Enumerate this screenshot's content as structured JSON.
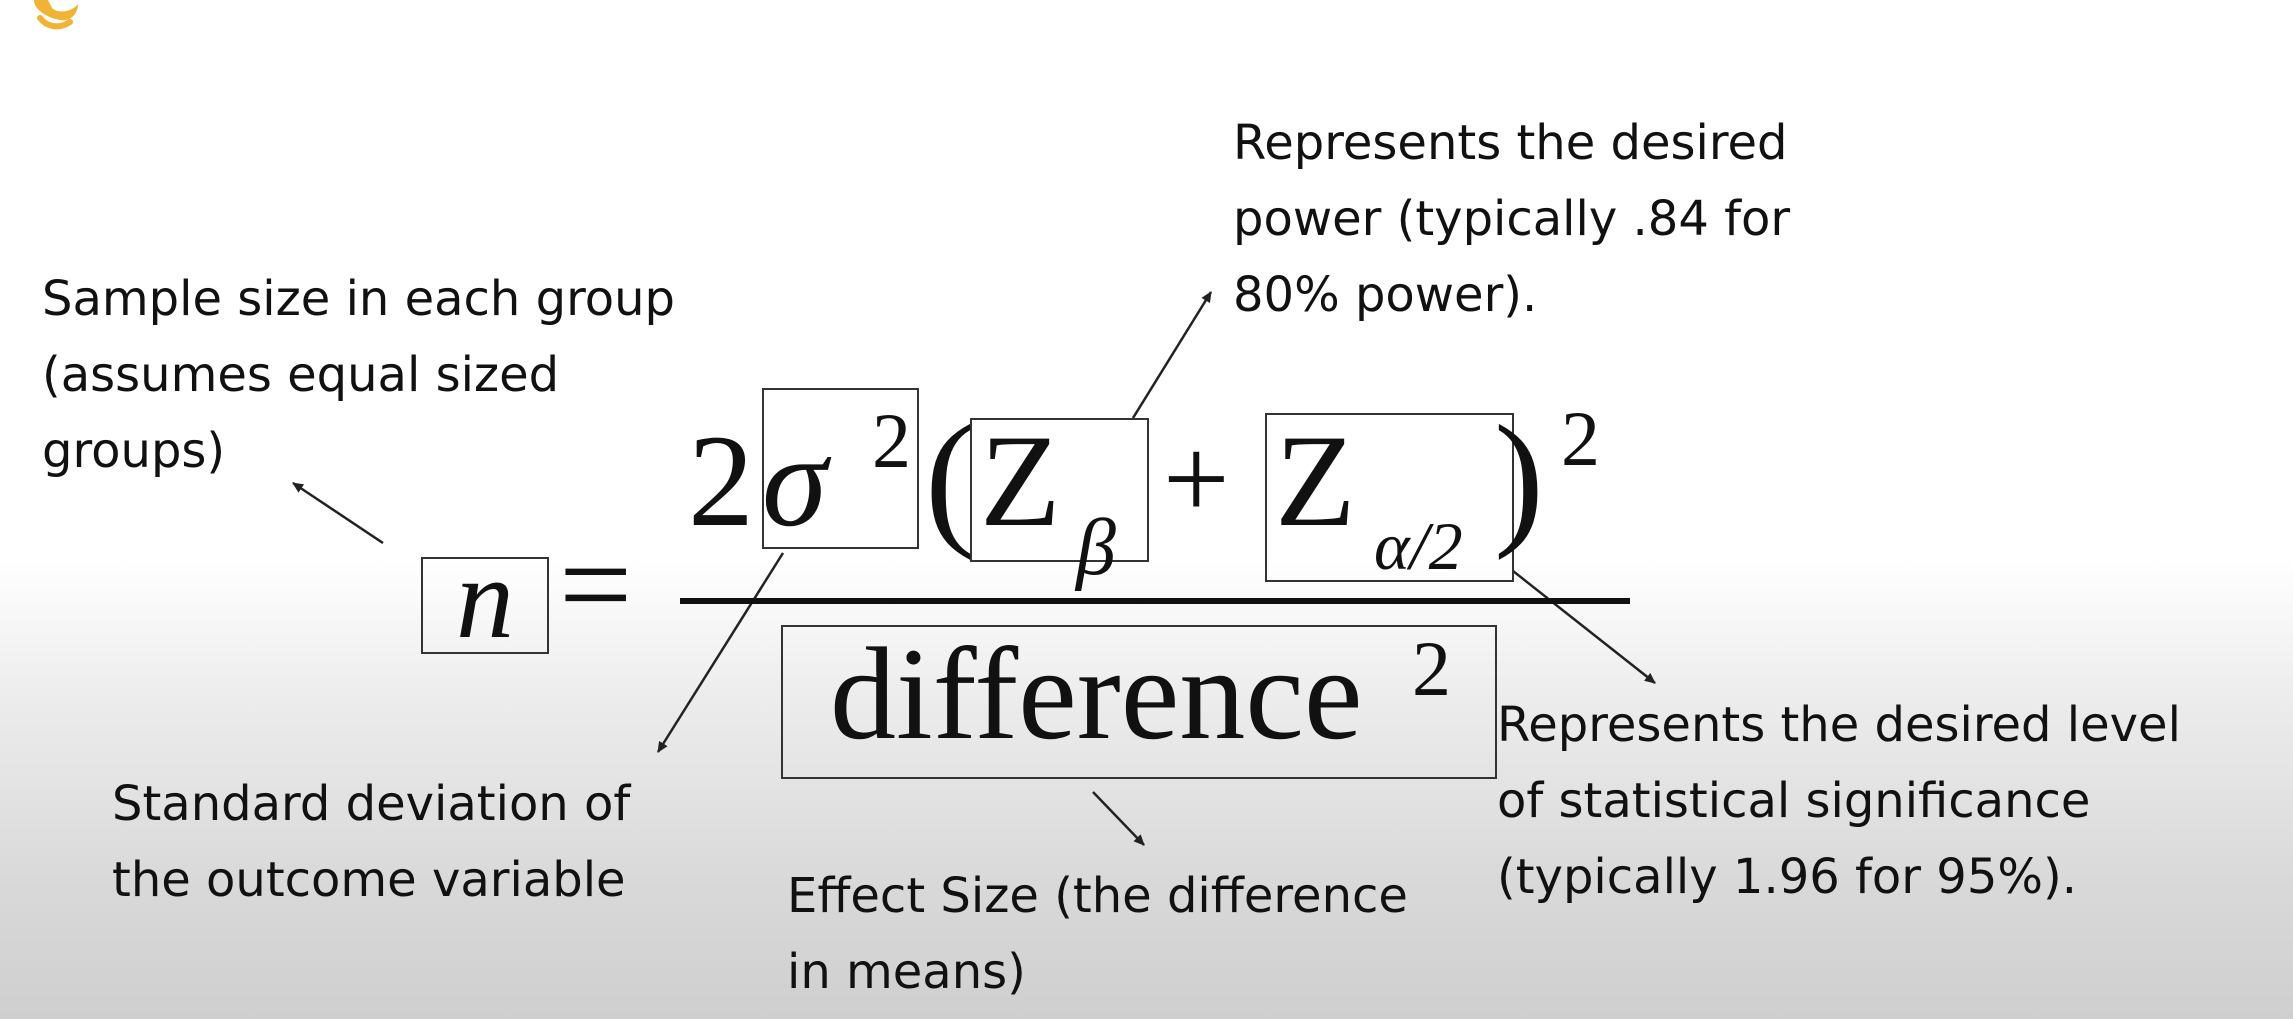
{
  "annotations": {
    "power": {
      "lines": [
        "Represents the desired",
        "power (typically .84 for",
        "80% power)."
      ]
    },
    "sample_size": {
      "lines": [
        "Sample size in each group",
        "(assumes equal sized",
        "groups)"
      ]
    },
    "std_dev": {
      "lines": [
        "Standard deviation of",
        "the outcome variable"
      ]
    },
    "effect_size": {
      "lines": [
        "Effect Size (the difference",
        "in means)"
      ]
    },
    "significance": {
      "lines": [
        "Represents the desired level",
        "of statistical significance",
        "(typically 1.96 for 95%)."
      ]
    }
  },
  "formula": {
    "lhs": "n",
    "equals": "=",
    "coefficient": "2",
    "sigma": "σ",
    "sigma_exponent": "2",
    "open_paren": "(",
    "z": "Z",
    "z_beta_subscript": "β",
    "plus": "+",
    "z_alpha_subscript": "α/2",
    "close_paren": ")",
    "paren_exponent": "2",
    "denominator": "difference",
    "denominator_exponent": "2"
  },
  "colors": {
    "text": "#111111",
    "box_border": "#333333",
    "logo": "#f2b233"
  }
}
